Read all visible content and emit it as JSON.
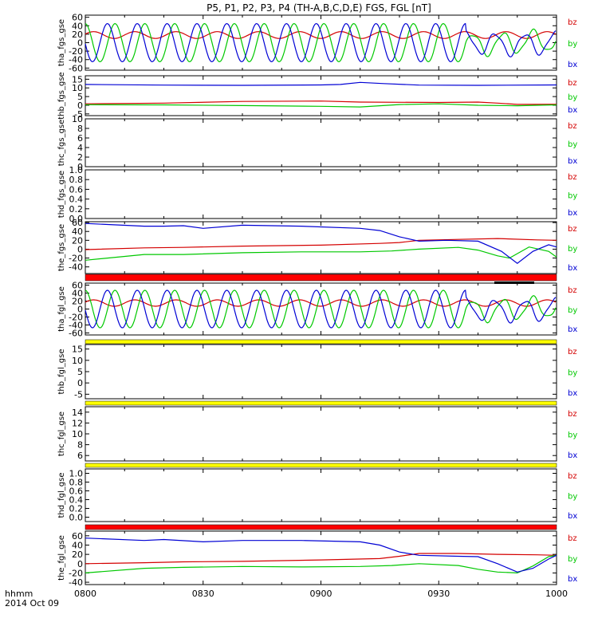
{
  "title": "P5, P1, P2, P3, P4 (TH-A,B,C,D,E) FGS, FGL [nT]",
  "x_axis": {
    "tick_labels": [
      "0800",
      "0830",
      "0900",
      "0930",
      "1000"
    ],
    "corner_label_1": "hhmm",
    "corner_label_2": "2014 Oct 09"
  },
  "colors": {
    "bz": "#d40000",
    "by": "#00c800",
    "bx": "#0000d4",
    "flag_red": "#ff0000",
    "flag_yellow": "#ffff00",
    "flag_black": "#000000"
  },
  "chart_data": [
    {
      "type": "line",
      "id": "tha_fgs",
      "ylabel": "tha_fgs_gse",
      "ylim": [
        -65,
        65
      ],
      "yticks": [
        60,
        40,
        20,
        0,
        -20,
        -40,
        -60
      ],
      "series": [
        {
          "name": "bz",
          "color": "#d40000",
          "shape": "sine",
          "offset": 18,
          "amp": 8,
          "period_min": 10.5,
          "phase": 0.3
        },
        {
          "name": "by",
          "color": "#00c800",
          "shape": "sine",
          "offset": 0,
          "amp": 45,
          "period_min": 7.6,
          "phase": 1.6,
          "damp_after": 97
        },
        {
          "name": "bx",
          "color": "#0000d4",
          "shape": "sine",
          "offset": 0,
          "amp": 45,
          "period_min": 7.6,
          "phase": 3.2,
          "damp_after": 97
        }
      ]
    },
    {
      "type": "line",
      "id": "thb_fgs",
      "ylabel": "thb_fgs_gse",
      "ylim": [
        -6,
        17
      ],
      "yticks": [
        15,
        10,
        5,
        0,
        -5
      ],
      "series": [
        {
          "name": "bz",
          "color": "#d40000",
          "points": [
            [
              0,
              0.8
            ],
            [
              20,
              1.2
            ],
            [
              40,
              2.2
            ],
            [
              60,
              2.4
            ],
            [
              70,
              1.8
            ],
            [
              90,
              1.6
            ],
            [
              100,
              1.8
            ],
            [
              105,
              1.2
            ],
            [
              110,
              0.5
            ],
            [
              120,
              0.6
            ]
          ]
        },
        {
          "name": "by",
          "color": "#00c800",
          "points": [
            [
              0,
              0.3
            ],
            [
              20,
              0.2
            ],
            [
              40,
              -0.2
            ],
            [
              60,
              -0.6
            ],
            [
              70,
              -1.0
            ],
            [
              80,
              0.4
            ],
            [
              90,
              0.8
            ],
            [
              100,
              0.0
            ],
            [
              110,
              -0.3
            ],
            [
              120,
              0.2
            ]
          ]
        },
        {
          "name": "bx",
          "color": "#0000d4",
          "points": [
            [
              0,
              12.0
            ],
            [
              20,
              11.6
            ],
            [
              40,
              11.5
            ],
            [
              60,
              11.7
            ],
            [
              65,
              12.0
            ],
            [
              70,
              13.2
            ],
            [
              76,
              12.5
            ],
            [
              85,
              11.6
            ],
            [
              100,
              11.5
            ],
            [
              120,
              11.7
            ]
          ]
        }
      ]
    },
    {
      "type": "line",
      "id": "thc_fgs",
      "ylabel": "thc_fgs_gse",
      "ylim": [
        0,
        10
      ],
      "yticks": [
        10,
        8,
        6,
        4,
        2,
        0
      ],
      "series": []
    },
    {
      "type": "line",
      "id": "thd_fgs",
      "ylabel": "thd_fgs_gse",
      "ylim": [
        0,
        1.0
      ],
      "yticks": [
        1.0,
        0.8,
        0.6,
        0.4,
        0.2,
        0.0
      ],
      "series": []
    },
    {
      "type": "line",
      "id": "the_fgs",
      "ylabel": "the_fgs_gse",
      "ylim": [
        -55,
        62
      ],
      "yticks": [
        60,
        40,
        20,
        0,
        -20,
        -40
      ],
      "series": [
        {
          "name": "bz",
          "color": "#d40000",
          "points": [
            [
              0,
              -1
            ],
            [
              15,
              3
            ],
            [
              25,
              4
            ],
            [
              40,
              7
            ],
            [
              60,
              9
            ],
            [
              75,
              13
            ],
            [
              80,
              15
            ],
            [
              85,
              20
            ],
            [
              95,
              22
            ],
            [
              105,
              24
            ],
            [
              115,
              21
            ],
            [
              120,
              20
            ]
          ]
        },
        {
          "name": "by",
          "color": "#00c800",
          "points": [
            [
              0,
              -25
            ],
            [
              15,
              -12
            ],
            [
              25,
              -12
            ],
            [
              40,
              -8
            ],
            [
              55,
              -6
            ],
            [
              70,
              -6
            ],
            [
              78,
              -4
            ],
            [
              85,
              0
            ],
            [
              95,
              4
            ],
            [
              100,
              -2
            ],
            [
              105,
              -15
            ],
            [
              108,
              -20
            ],
            [
              113,
              5
            ],
            [
              118,
              -5
            ],
            [
              120,
              -18
            ]
          ]
        },
        {
          "name": "bx",
          "color": "#0000d4",
          "points": [
            [
              0,
              58
            ],
            [
              15,
              52
            ],
            [
              20,
              52
            ],
            [
              25,
              53
            ],
            [
              30,
              47
            ],
            [
              40,
              54
            ],
            [
              55,
              52
            ],
            [
              70,
              47
            ],
            [
              75,
              42
            ],
            [
              80,
              28
            ],
            [
              85,
              18
            ],
            [
              92,
              20
            ],
            [
              100,
              18
            ],
            [
              106,
              -5
            ],
            [
              110,
              -32
            ],
            [
              114,
              -5
            ],
            [
              118,
              10
            ],
            [
              120,
              5
            ]
          ]
        }
      ]
    },
    {
      "type": "line",
      "id": "tha_fgl",
      "ylabel": "tha_fgl_gse",
      "ylim": [
        -65,
        65
      ],
      "yticks": [
        60,
        40,
        20,
        0,
        -20,
        -40,
        -60
      ],
      "series": [
        {
          "name": "bz",
          "color": "#d40000",
          "shape": "sine",
          "offset": 15,
          "amp": 8,
          "period_min": 10.5,
          "phase": 0.3
        },
        {
          "name": "by",
          "color": "#00c800",
          "shape": "sine",
          "offset": 0,
          "amp": 47,
          "period_min": 7.6,
          "phase": 1.6,
          "damp_after": 97
        },
        {
          "name": "bx",
          "color": "#0000d4",
          "shape": "sine",
          "offset": 0,
          "amp": 47,
          "period_min": 7.6,
          "phase": 3.2,
          "damp_after": 97
        }
      ]
    },
    {
      "type": "line",
      "id": "thb_fgl",
      "ylabel": "thb_fgl_gse",
      "ylim": [
        -7,
        17
      ],
      "yticks": [
        15,
        10,
        5,
        0,
        -5
      ],
      "series": []
    },
    {
      "type": "line",
      "id": "thc_fgl",
      "ylabel": "thc_fgl_gse",
      "ylim": [
        5,
        15
      ],
      "yticks": [
        14,
        12,
        10,
        8,
        6
      ],
      "series": []
    },
    {
      "type": "line",
      "id": "thd_fgl",
      "ylabel": "thd_fgl_gse",
      "ylim": [
        -0.1,
        1.1
      ],
      "yticks": [
        1.0,
        0.8,
        0.6,
        0.4,
        0.2,
        0.0
      ],
      "series": []
    },
    {
      "type": "line",
      "id": "the_fgl",
      "ylabel": "the_fgl_gse",
      "ylim": [
        -45,
        70
      ],
      "yticks": [
        60,
        40,
        20,
        0,
        -20,
        -40
      ],
      "series": [
        {
          "name": "bz",
          "color": "#d40000",
          "points": [
            [
              0,
              0
            ],
            [
              15,
              2
            ],
            [
              25,
              4
            ],
            [
              40,
              5
            ],
            [
              60,
              8
            ],
            [
              75,
              11
            ],
            [
              80,
              16
            ],
            [
              85,
              22
            ],
            [
              95,
              22
            ],
            [
              105,
              20
            ],
            [
              115,
              19
            ],
            [
              120,
              18
            ]
          ]
        },
        {
          "name": "by",
          "color": "#00c800",
          "points": [
            [
              0,
              -20
            ],
            [
              15,
              -10
            ],
            [
              25,
              -8
            ],
            [
              40,
              -6
            ],
            [
              55,
              -7
            ],
            [
              70,
              -6
            ],
            [
              78,
              -4
            ],
            [
              85,
              0
            ],
            [
              95,
              -4
            ],
            [
              100,
              -12
            ],
            [
              105,
              -18
            ],
            [
              110,
              -20
            ],
            [
              114,
              -5
            ],
            [
              118,
              15
            ],
            [
              120,
              18
            ]
          ]
        },
        {
          "name": "bx",
          "color": "#0000d4",
          "points": [
            [
              0,
              55
            ],
            [
              15,
              50
            ],
            [
              20,
              52
            ],
            [
              30,
              47
            ],
            [
              40,
              50
            ],
            [
              55,
              50
            ],
            [
              70,
              47
            ],
            [
              75,
              40
            ],
            [
              80,
              25
            ],
            [
              85,
              18
            ],
            [
              95,
              16
            ],
            [
              100,
              15
            ],
            [
              105,
              0
            ],
            [
              110,
              -18
            ],
            [
              114,
              -10
            ],
            [
              118,
              10
            ],
            [
              120,
              18
            ]
          ]
        }
      ]
    }
  ],
  "legend": [
    "bz",
    "by",
    "bx"
  ]
}
